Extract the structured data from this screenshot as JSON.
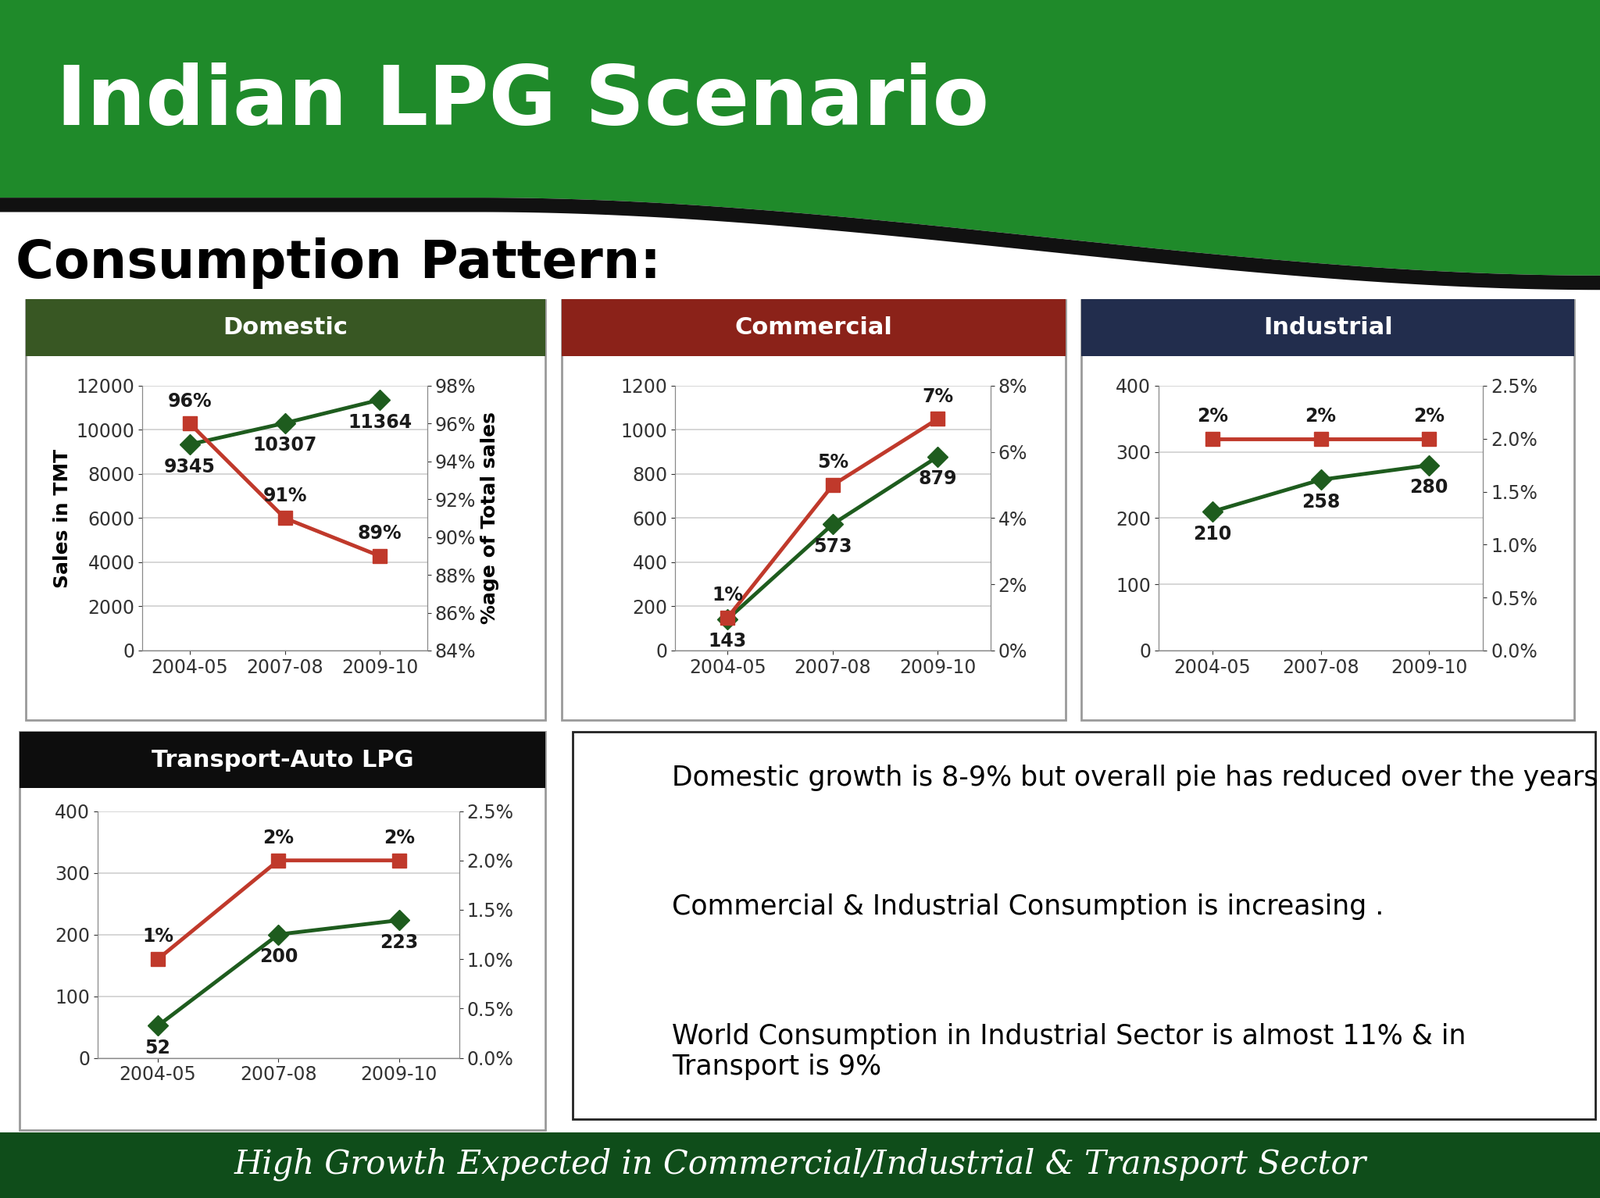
{
  "title": "Indian LPG Scenario",
  "subtitle": "Consumption Pattern:",
  "chart_data": [
    {
      "type": "line",
      "title": "Domestic",
      "categories": [
        "2004-05",
        "2007-08",
        "2009-10"
      ],
      "ylabel": "Sales in TMT",
      "y2label": "%age of Total sales",
      "ylim": [
        0,
        12000
      ],
      "yticks": [
        0,
        2000,
        4000,
        6000,
        8000,
        10000,
        12000
      ],
      "y2lim": [
        84,
        98
      ],
      "y2ticks": [
        {
          "value": 84,
          "label": "84%"
        },
        {
          "value": 86,
          "label": "86%"
        },
        {
          "value": 88,
          "label": "88%"
        },
        {
          "value": 90,
          "label": "90%"
        },
        {
          "value": 92,
          "label": "92%"
        },
        {
          "value": 94,
          "label": "94%"
        },
        {
          "value": 96,
          "label": "96%"
        },
        {
          "value": 98,
          "label": "98%"
        }
      ],
      "grid": true,
      "data_labels": true,
      "series": [
        {
          "color": "#1e5c1e",
          "marker": "diamond",
          "values": [
            9345,
            10307,
            11364
          ]
        },
        {
          "axis": "y2",
          "color": "#c0392b",
          "marker": "square",
          "values": [
            96,
            91,
            89
          ],
          "value_labels": [
            "96%",
            "91%",
            "89%"
          ]
        }
      ]
    },
    {
      "type": "line",
      "title": "Commercial",
      "categories": [
        "2004-05",
        "2007-08",
        "2009-10"
      ],
      "ylim": [
        0,
        1200
      ],
      "yticks": [
        0,
        200,
        400,
        600,
        800,
        1000,
        1200
      ],
      "y2lim": [
        0,
        8
      ],
      "y2ticks": [
        {
          "value": 0,
          "label": "0%"
        },
        {
          "value": 2,
          "label": "2%"
        },
        {
          "value": 4,
          "label": "4%"
        },
        {
          "value": 6,
          "label": "6%"
        },
        {
          "value": 8,
          "label": "8%"
        }
      ],
      "grid": true,
      "data_labels": true,
      "series": [
        {
          "color": "#1e5c1e",
          "marker": "diamond",
          "values": [
            143,
            573,
            879
          ]
        },
        {
          "axis": "y2",
          "color": "#c0392b",
          "marker": "square",
          "values": [
            1,
            5,
            7
          ],
          "value_labels": [
            "1%",
            "5%",
            "7%"
          ]
        }
      ]
    },
    {
      "type": "line",
      "title": "Industrial",
      "categories": [
        "2004-05",
        "2007-08",
        "2009-10"
      ],
      "ylim": [
        0,
        400
      ],
      "yticks": [
        0,
        100,
        200,
        300,
        400
      ],
      "y2lim": [
        0,
        2.5
      ],
      "y2ticks": [
        {
          "value": 0,
          "label": "0.0%"
        },
        {
          "value": 0.5,
          "label": "0.5%"
        },
        {
          "value": 1,
          "label": "1.0%"
        },
        {
          "value": 1.5,
          "label": "1.5%"
        },
        {
          "value": 2,
          "label": "2.0%"
        },
        {
          "value": 2.5,
          "label": "2.5%"
        }
      ],
      "grid": true,
      "data_labels": true,
      "series": [
        {
          "color": "#1e5c1e",
          "marker": "diamond",
          "values": [
            210,
            258,
            280
          ]
        },
        {
          "axis": "y2",
          "color": "#c0392b",
          "marker": "square",
          "values": [
            2,
            2,
            2
          ],
          "value_labels": [
            "2%",
            "2%",
            "2%"
          ]
        }
      ]
    },
    {
      "type": "line",
      "title": "Transport-Auto LPG",
      "categories": [
        "2004-05",
        "2007-08",
        "2009-10"
      ],
      "ylim": [
        0,
        400
      ],
      "yticks": [
        0,
        100,
        200,
        300,
        400
      ],
      "y2lim": [
        0,
        2.5
      ],
      "y2ticks": [
        {
          "value": 0,
          "label": "0.0%"
        },
        {
          "value": 0.5,
          "label": "0.5%"
        },
        {
          "value": 1,
          "label": "1.0%"
        },
        {
          "value": 1.5,
          "label": "1.5%"
        },
        {
          "value": 2,
          "label": "2.0%"
        },
        {
          "value": 2.5,
          "label": "2.5%"
        }
      ],
      "grid": true,
      "data_labels": true,
      "series": [
        {
          "color": "#1e5c1e",
          "marker": "diamond",
          "values": [
            52,
            200,
            223
          ]
        },
        {
          "axis": "y2",
          "color": "#c0392b",
          "marker": "square",
          "values": [
            1,
            2,
            2
          ],
          "value_labels": [
            "1%",
            "2%",
            "2%"
          ]
        }
      ]
    }
  ],
  "bullets": [
    "Domestic growth is 8-9% but overall pie has reduced over the years",
    "Commercial & Industrial Consumption is increasing .",
    "World Consumption in Industrial Sector is almost 11% & in Transport is 9%"
  ],
  "footer": "High Growth Expected in Commercial/Industrial & Transport Sector"
}
